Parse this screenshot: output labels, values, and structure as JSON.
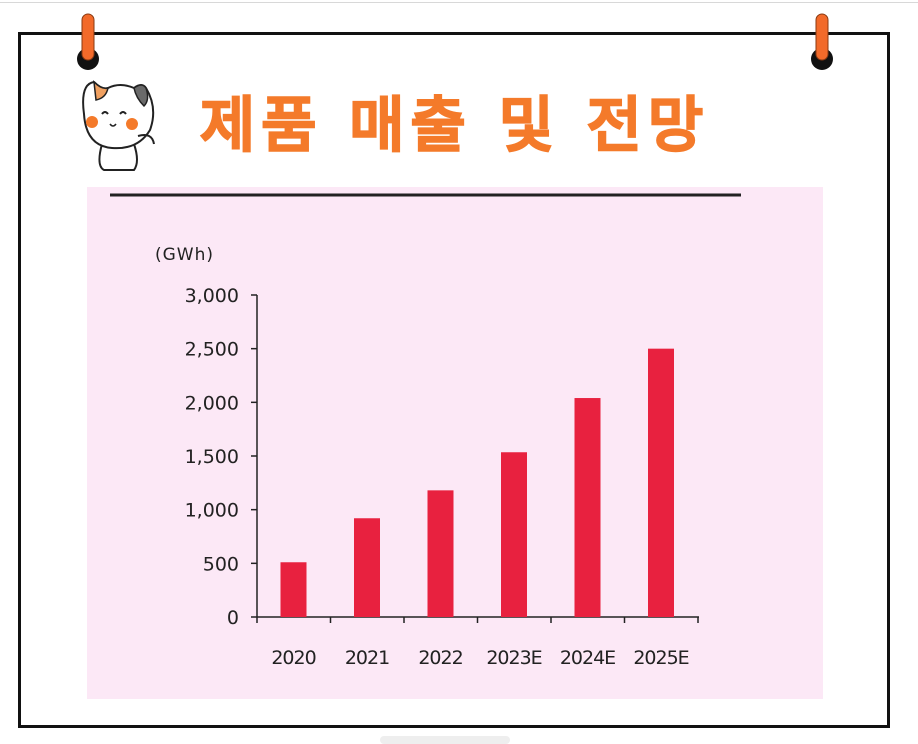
{
  "title": "제품 매출 및 전망",
  "icons": {
    "pins": "binder-clip-icon",
    "mascot": "cat-mascot-icon"
  },
  "colors": {
    "title": "#f47a2a",
    "bar": "#e8213f",
    "chart_background": "#fce8f6",
    "pin": "#f26a2a"
  },
  "chart_data": {
    "type": "bar",
    "unit_label": "(GWh)",
    "categories": [
      "2020",
      "2021",
      "2022",
      "2023E",
      "2024E",
      "2025E"
    ],
    "values": [
      510,
      920,
      1180,
      1535,
      2040,
      2500
    ],
    "ylim": [
      0,
      3000
    ],
    "yticks": [
      0,
      500,
      1000,
      1500,
      2000,
      2500,
      3000
    ],
    "ytick_labels": [
      "0",
      "500",
      "1,000",
      "1,500",
      "2,000",
      "2,500",
      "3,000"
    ],
    "grid": false,
    "legend": "none"
  }
}
